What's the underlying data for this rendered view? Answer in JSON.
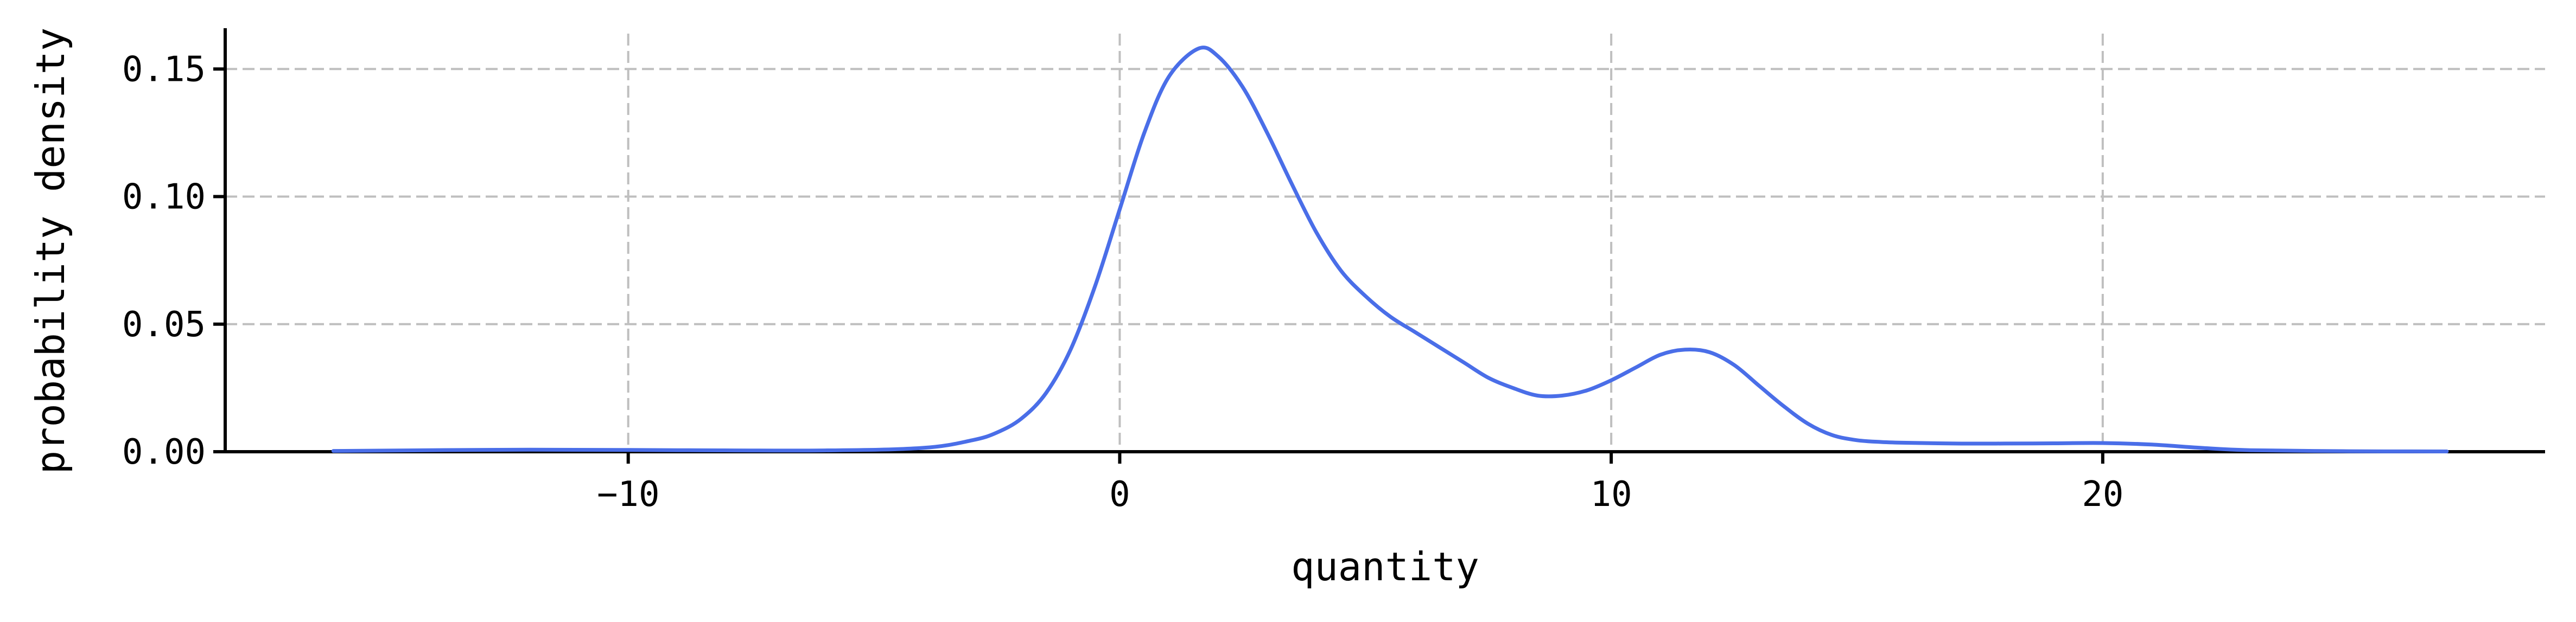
{
  "chart_data": {
    "type": "line",
    "title": "",
    "xlabel": "quantity",
    "ylabel": "probability density",
    "xlim": [
      -18.2,
      29.0
    ],
    "ylim": [
      0,
      0.166
    ],
    "x_ticks": [
      -10,
      0,
      10,
      20
    ],
    "x_tick_labels": [
      "−10",
      "0",
      "10",
      "20"
    ],
    "y_ticks": [
      0.0,
      0.05,
      0.1,
      0.15
    ],
    "y_tick_labels": [
      "0.00",
      "0.05",
      "0.10",
      "0.15"
    ],
    "grid": true,
    "legend": "none",
    "colors": {
      "line": "#4a6ee8",
      "grid": "#bfbfbf",
      "axis": "#000000"
    },
    "series": [
      {
        "x": [
          -16,
          -12,
          -9,
          -6,
          -4,
          -3,
          -2.5,
          -2,
          -1.5,
          -1,
          -0.5,
          0,
          0.5,
          1,
          1.6,
          2,
          2.5,
          3,
          3.5,
          4,
          4.5,
          5,
          5.5,
          6,
          6.5,
          7,
          7.5,
          8,
          8.5,
          9,
          9.5,
          10,
          10.5,
          11,
          11.5,
          12,
          12.5,
          13,
          13.5,
          14,
          14.5,
          15,
          15.5,
          16,
          17,
          18,
          19,
          20,
          21,
          22,
          23,
          25,
          27
        ],
        "y": [
          0.0003,
          0.0008,
          0.0006,
          0.0005,
          0.0015,
          0.0045,
          0.0075,
          0.013,
          0.023,
          0.04,
          0.065,
          0.095,
          0.125,
          0.147,
          0.158,
          0.155,
          0.143,
          0.125,
          0.105,
          0.086,
          0.071,
          0.061,
          0.053,
          0.047,
          0.041,
          0.035,
          0.029,
          0.025,
          0.022,
          0.022,
          0.024,
          0.028,
          0.033,
          0.038,
          0.04,
          0.039,
          0.034,
          0.026,
          0.018,
          0.011,
          0.0065,
          0.0045,
          0.0038,
          0.0035,
          0.0032,
          0.0032,
          0.0033,
          0.0034,
          0.0028,
          0.0015,
          0.0006,
          0.0002,
          0.0001
        ]
      }
    ]
  }
}
